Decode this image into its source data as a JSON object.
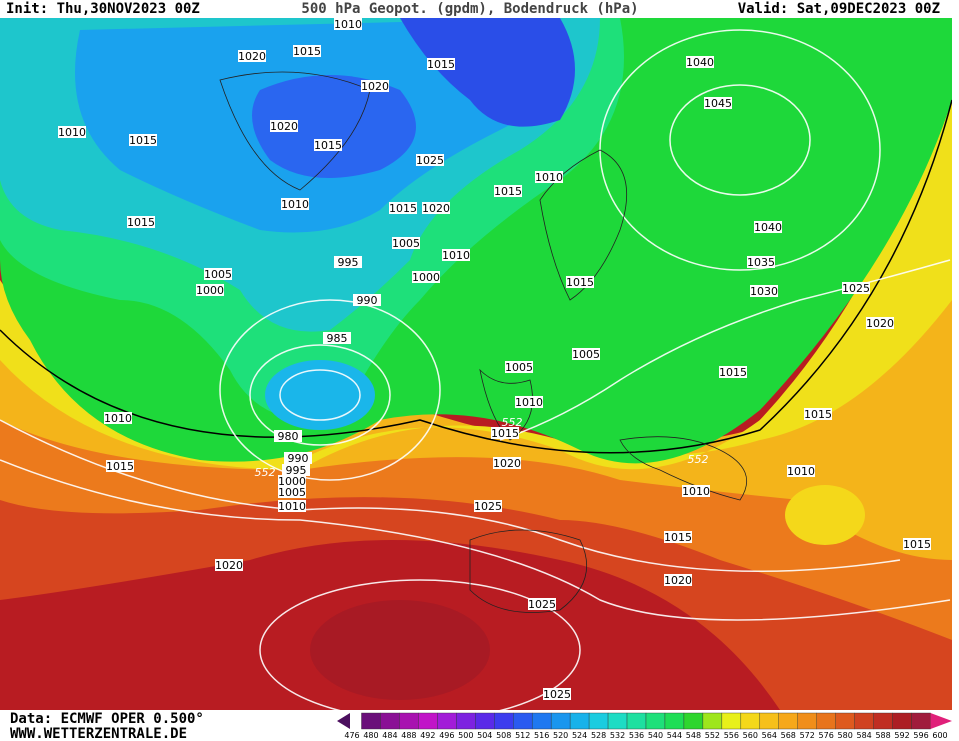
{
  "header": {
    "init": "Init: Thu,30NOV2023 00Z",
    "title": "500 hPa Geopot. (gpdm), Bodendruck (hPa)",
    "valid": "Valid: Sat,09DEC2023 00Z"
  },
  "footer": {
    "source": "Data: ECMWF OPER 0.500°",
    "site": "WWW.WETTERZENTRALE.DE"
  },
  "contours": {
    "labels": [
      1010,
      1015,
      1020,
      1015,
      1040,
      1020,
      1045,
      1010,
      1015,
      1020,
      1015,
      1025,
      1010,
      1015,
      1015,
      1010,
      1015,
      1020,
      1040,
      1005,
      1010,
      1035,
      995,
      1000,
      1005,
      1000,
      1015,
      1030,
      1025,
      990,
      1020,
      985,
      1005,
      1005,
      1015,
      1010,
      1010,
      1015,
      1015,
      980,
      1020,
      1010,
      990,
      995,
      1000,
      1005,
      1010,
      1015,
      1010,
      1025,
      1015,
      1015,
      1020,
      1020,
      1025,
      1025,
      552,
      552,
      552
    ]
  },
  "colorbar": {
    "labels": [
      476,
      480,
      484,
      488,
      492,
      496,
      500,
      504,
      508,
      512,
      516,
      520,
      524,
      528,
      532,
      536,
      540,
      544,
      548,
      552,
      556,
      560,
      564,
      568,
      572,
      576,
      580,
      584,
      588,
      592,
      596,
      600
    ],
    "colors": [
      "#4b0f5e",
      "#6a0f7a",
      "#8a1095",
      "#a812b0",
      "#c114c8",
      "#a21cd8",
      "#7d22e0",
      "#5a2ae8",
      "#3c3cee",
      "#2a5af0",
      "#1f78f0",
      "#1a96ee",
      "#18b2ea",
      "#1acce0",
      "#1ddcc4",
      "#1ee0a0",
      "#1ee07a",
      "#1ede56",
      "#2ed62e",
      "#9ee61c",
      "#e8f01a",
      "#f4d81a",
      "#f6c01a",
      "#f6a81a",
      "#f08e1a",
      "#e8741c",
      "#de5a1e",
      "#d04220",
      "#c02e22",
      "#ac1e24",
      "#a01c3c",
      "#e0207a"
    ]
  }
}
